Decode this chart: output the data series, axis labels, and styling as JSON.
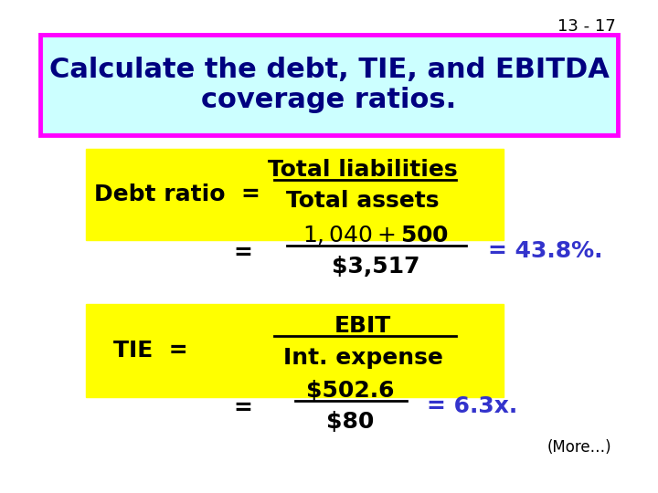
{
  "slide_number": "13 - 17",
  "title": "Calculate the debt, TIE, and EBITDA\ncoverage ratios.",
  "title_bg": "#ccffff",
  "title_border": "#ff00ff",
  "yellow_bg": "#ffff00",
  "white_bg": "#ffffff",
  "dark_blue": "#000080",
  "result_blue": "#3333cc",
  "black": "#000000",
  "more_text": "(More…)",
  "debt_label": "Debt ratio  =",
  "debt_num": "Total liabilities",
  "debt_den": "Total assets",
  "debt_eq2_prefix": "=",
  "debt_eq2_num": "$1,040 + $500",
  "debt_eq2_den": "$3,517",
  "debt_result": "= 43.8%.",
  "tie_label": "TIE  =",
  "tie_num": "EBIT",
  "tie_den": "Int. expense",
  "tie_eq2_prefix": "=",
  "tie_eq2_num": "$502.6",
  "tie_eq2_den": "$80",
  "tie_result": "= 6.3x."
}
